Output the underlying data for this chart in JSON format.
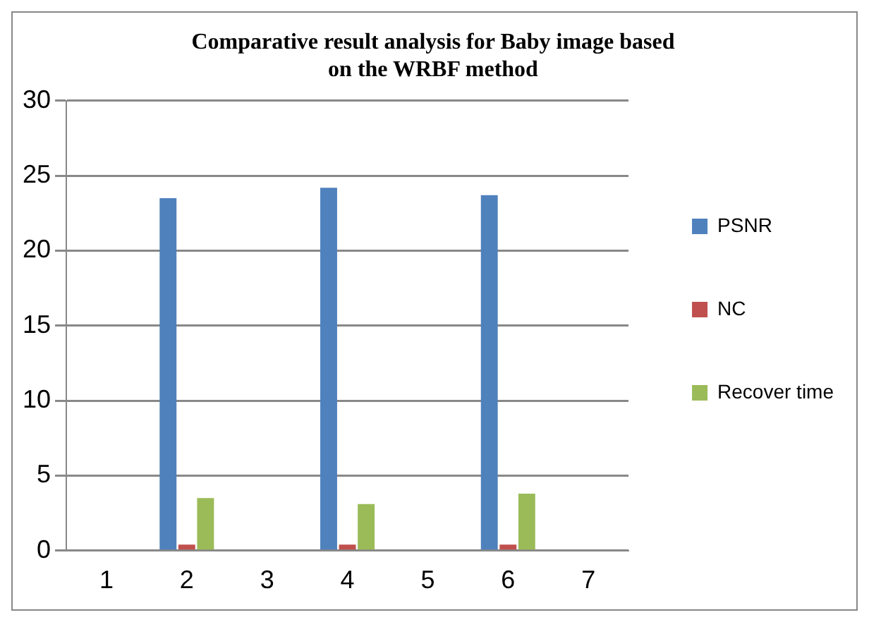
{
  "chart_data": {
    "type": "bar",
    "title": "Comparative result analysis for Baby image based on the WRBF method",
    "categories": [
      "1",
      "2",
      "3",
      "4",
      "5",
      "6",
      "7"
    ],
    "series": [
      {
        "name": "PSNR",
        "color": "#4f81bd",
        "values": [
          null,
          23.5,
          null,
          24.2,
          null,
          23.7,
          null
        ]
      },
      {
        "name": "NC",
        "color": "#c0504d",
        "values": [
          null,
          0.4,
          null,
          0.4,
          null,
          0.4,
          null
        ]
      },
      {
        "name": "Recover time",
        "color": "#9bbb59",
        "values": [
          null,
          3.5,
          null,
          3.1,
          null,
          3.8,
          null
        ]
      }
    ],
    "ylim": [
      0,
      30
    ],
    "yticks": [
      0,
      5,
      10,
      15,
      20,
      25,
      30
    ],
    "grid": "y",
    "legend": "right"
  }
}
